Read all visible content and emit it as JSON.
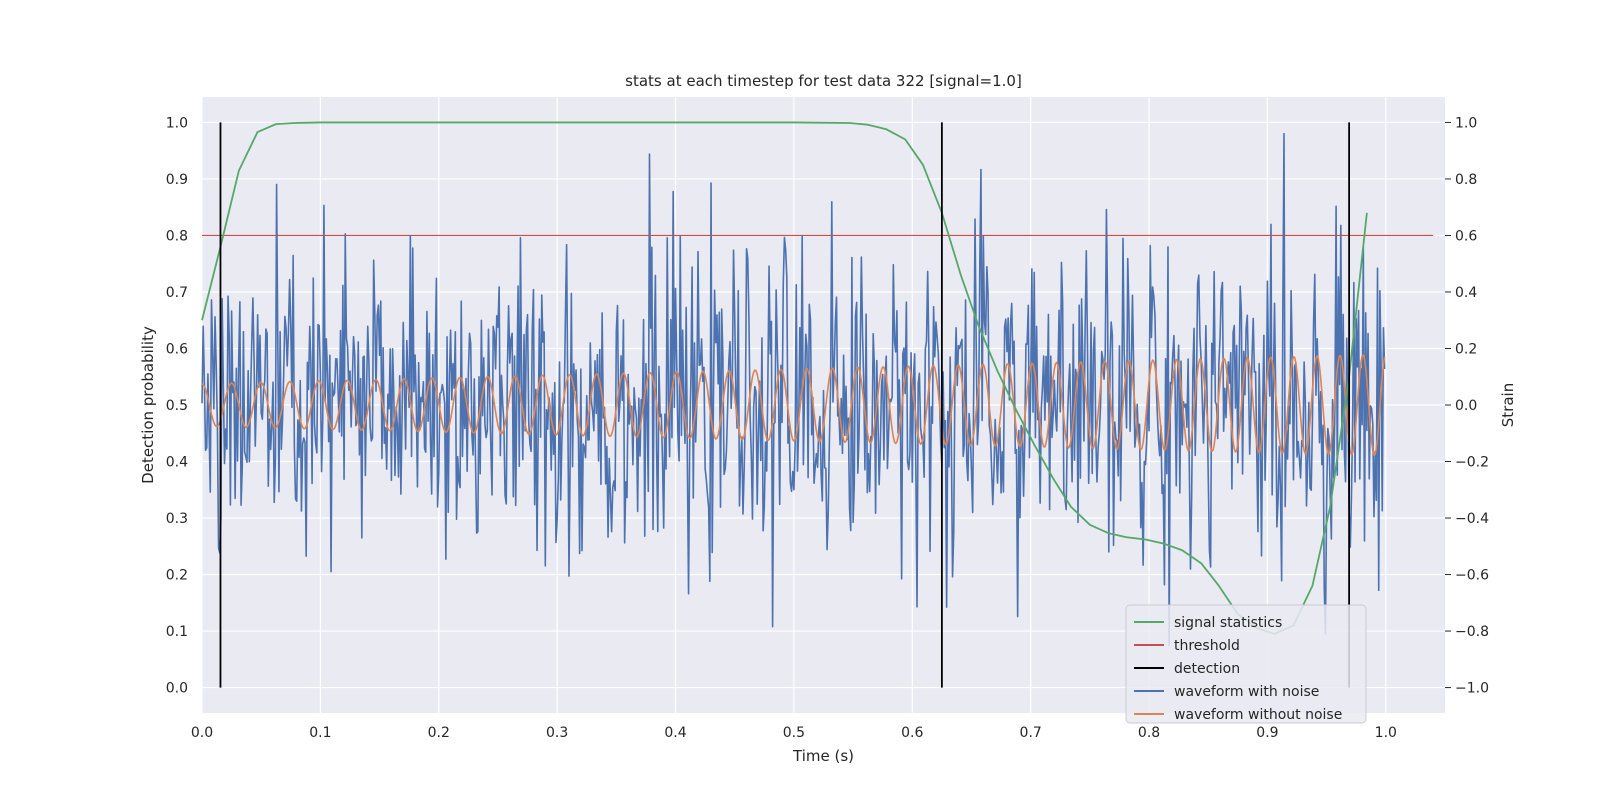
{
  "chart_data": {
    "type": "line",
    "title": "stats at each timestep for test data 322 [signal=1.0]",
    "xlabel": "Time (s)",
    "ylabel": "Detection probability",
    "y2label": "Strain",
    "xlim": [
      0.0,
      1.05
    ],
    "ylim": [
      -0.045,
      1.045
    ],
    "y2lim": [
      -1.09,
      1.09
    ],
    "x_ticks": [
      0.0,
      0.1,
      0.2,
      0.3,
      0.4,
      0.5,
      0.6,
      0.7,
      0.8,
      0.9,
      1.0
    ],
    "x_tick_labels": [
      "0.0",
      "0.1",
      "0.2",
      "0.3",
      "0.4",
      "0.5",
      "0.6",
      "0.7",
      "0.8",
      "0.9",
      "1.0"
    ],
    "y_ticks": [
      0.0,
      0.1,
      0.2,
      0.3,
      0.4,
      0.5,
      0.6,
      0.7,
      0.8,
      0.9,
      1.0
    ],
    "y_tick_labels": [
      "0.0",
      "0.1",
      "0.2",
      "0.3",
      "0.4",
      "0.5",
      "0.6",
      "0.7",
      "0.8",
      "0.9",
      "1.0"
    ],
    "y2_ticks": [
      1.0,
      0.8,
      0.6,
      0.4,
      0.2,
      0.0,
      -0.2,
      -0.4,
      -0.6,
      -0.8,
      -1.0
    ],
    "y2_tick_labels": [
      "1.0",
      "0.8",
      "0.6",
      "0.4",
      "0.2",
      "0.0",
      "−0.2",
      "−0.4",
      "−0.6",
      "−0.8",
      "−1.0"
    ],
    "grid": true,
    "legend_position": "bottom-right",
    "series": [
      {
        "name": "signal statistics",
        "axis": "left",
        "color": "#55a868",
        "x": [
          0.0,
          0.0156,
          0.0312,
          0.0469,
          0.0625,
          0.0781,
          0.1,
          0.2,
          0.3,
          0.4,
          0.5,
          0.547,
          0.5625,
          0.578,
          0.594,
          0.609,
          0.625,
          0.641,
          0.656,
          0.672,
          0.688,
          0.703,
          0.719,
          0.734,
          0.75,
          0.766,
          0.781,
          0.797,
          0.812,
          0.828,
          0.844,
          0.859,
          0.875,
          0.891,
          0.906,
          0.922,
          0.938,
          0.953,
          0.969,
          0.984
        ],
        "y": [
          0.65,
          0.78,
          0.915,
          0.983,
          0.997,
          0.999,
          1.0,
          1.0,
          1.0,
          1.0,
          1.0,
          0.999,
          0.996,
          0.988,
          0.97,
          0.925,
          0.84,
          0.73,
          0.64,
          0.56,
          0.49,
          0.43,
          0.37,
          0.32,
          0.288,
          0.273,
          0.266,
          0.262,
          0.255,
          0.243,
          0.22,
          0.18,
          0.13,
          0.105,
          0.095,
          0.11,
          0.18,
          0.32,
          0.55,
          0.84
        ]
      },
      {
        "name": "threshold",
        "axis": "left",
        "color": "#c44e52",
        "x": [
          0.0,
          1.04
        ],
        "y": [
          0.8,
          0.8
        ]
      },
      {
        "name": "detection",
        "axis": "left",
        "color": "#000000",
        "x": [
          0.0156,
          0.625,
          0.969
        ],
        "y_range": [
          0.0,
          1.0
        ]
      },
      {
        "name": "waveform with noise",
        "axis": "right",
        "color": "#4c72b0",
        "samples": 1000,
        "x_range": [
          0.0,
          0.999
        ],
        "y_range": [
          -1.0,
          1.0
        ]
      },
      {
        "name": "waveform without noise",
        "axis": "right",
        "color": "#dd8452",
        "samples": 1000,
        "x_range": [
          0.0,
          0.999
        ],
        "cycles": 40,
        "amplitude_start": 0.075,
        "amplitude_end": 0.18
      }
    ]
  }
}
